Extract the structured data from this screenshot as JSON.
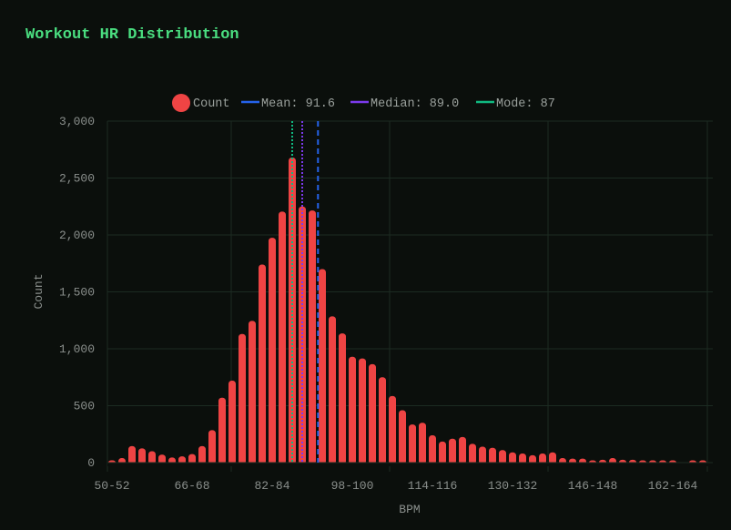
{
  "chart_data": {
    "type": "bar",
    "title": "Workout HR Distribution",
    "xlabel": "BPM",
    "ylabel": "Count",
    "ylim": [
      0,
      3000
    ],
    "yticks": [
      0,
      500,
      1000,
      1500,
      2000,
      2500,
      3000
    ],
    "ytick_labels": [
      "0",
      "500",
      "1,000",
      "1,500",
      "2,000",
      "2,500",
      "3,000"
    ],
    "xtick_labels": [
      "50-52",
      "66-68",
      "82-84",
      "98-100",
      "114-116",
      "130-132",
      "146-148",
      "162-164"
    ],
    "bin_start": 50,
    "bin_width": 2,
    "values": [
      10,
      40,
      145,
      125,
      100,
      70,
      45,
      55,
      75,
      145,
      285,
      570,
      720,
      1130,
      1245,
      1740,
      1975,
      2205,
      2680,
      2250,
      2215,
      1700,
      1285,
      1135,
      930,
      915,
      865,
      750,
      585,
      460,
      335,
      350,
      240,
      185,
      210,
      225,
      165,
      140,
      130,
      110,
      90,
      80,
      65,
      80,
      90,
      40,
      35,
      35,
      15,
      25,
      40,
      25,
      25,
      15,
      10,
      20,
      15,
      0,
      10,
      5
    ],
    "grid": true,
    "legend_position": "top-center",
    "series": [
      {
        "name": "Count",
        "color": "#ef4444"
      }
    ],
    "reference_lines": [
      {
        "name": "Mean: 91.6",
        "value": 91.6,
        "color": "#2563eb",
        "style": "dashed"
      },
      {
        "name": "Median: 89.0",
        "value": 89.0,
        "color": "#7c3aed",
        "style": "dotted"
      },
      {
        "name": "Mode: 87",
        "value": 87,
        "color": "#10b981",
        "style": "dotted"
      }
    ]
  }
}
